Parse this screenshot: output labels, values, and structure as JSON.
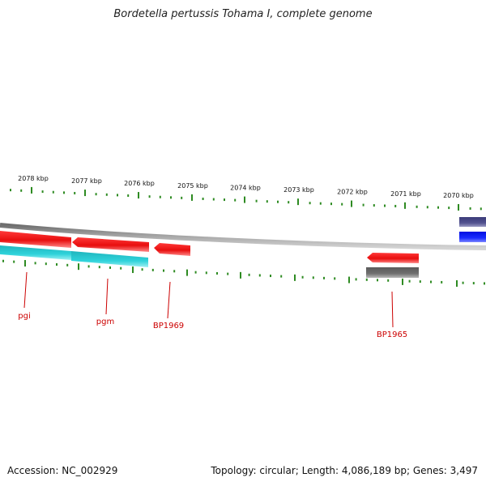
{
  "title": "Bordetella pertussis Tohama I, complete genome",
  "footer": {
    "accession": "Accession: NC_002929",
    "summary": "Topology: circular; Length: 4,086,189 bp; Genes: 3,497"
  },
  "colors": {
    "tick": "#2e8b22",
    "backbone": "#8c8c8c",
    "gene_red": "#ee1111",
    "gene_cyan": "#22c4cc",
    "gene_gray": "#6a6a6a",
    "gene_navy": "#4b4b8a",
    "gene_blue": "#1020ee",
    "label_red": "#cc0000"
  },
  "scale_labels": [
    "2078 kbp",
    "2077 kbp",
    "2076 kbp",
    "2075 kbp",
    "2074 kbp",
    "2073 kbp",
    "2072 kbp",
    "2071 kbp",
    "2070 kbp"
  ],
  "genes": [
    {
      "name": "pgi",
      "color": "gene_red"
    },
    {
      "name": "pgm",
      "color": "gene_red"
    },
    {
      "name": "BP1969",
      "color": "gene_red"
    },
    {
      "name": "BP1965",
      "color": "gene_red"
    }
  ],
  "feature_tracks": [
    {
      "name": "cyan-feature",
      "color": "gene_cyan"
    },
    {
      "name": "gray-feature",
      "color": "gene_gray"
    },
    {
      "name": "navy-feature",
      "color": "gene_navy"
    },
    {
      "name": "blue-feature",
      "color": "gene_blue"
    }
  ]
}
